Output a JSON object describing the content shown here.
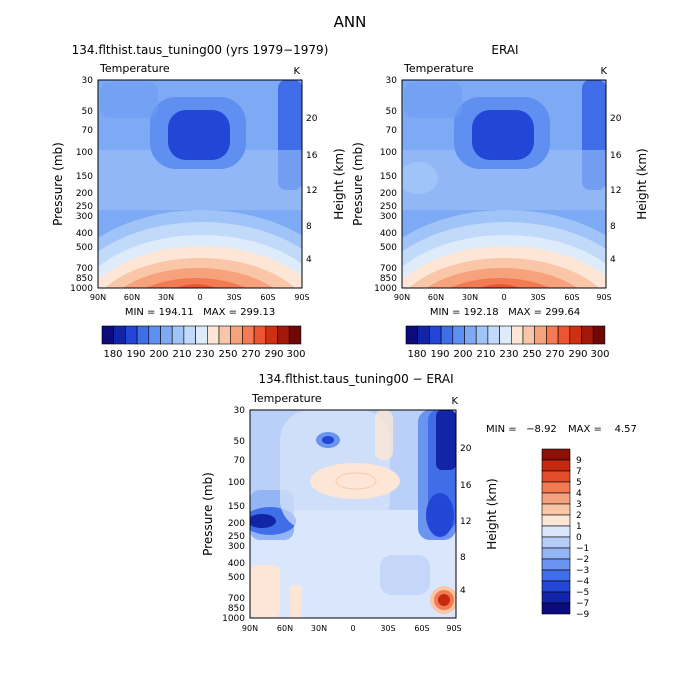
{
  "figure_title": "ANN",
  "colors": {
    "panel_scale": [
      "#0b0b7e",
      "#1224a8",
      "#2246d6",
      "#3f6ee8",
      "#5f8ff0",
      "#7ea9f4",
      "#a0c3f8",
      "#c2daf9",
      "#ddebfa",
      "#fde6d6",
      "#f9c7a8",
      "#f6a27c",
      "#f37a52",
      "#ec5530",
      "#cf3014",
      "#a3180b",
      "#700707"
    ],
    "diff_scale": [
      "#0b0b7e",
      "#1224a8",
      "#2246d6",
      "#3f6ee8",
      "#6a94f0",
      "#93b4f5",
      "#b6cdf8",
      "#d9e6fb",
      "#fde6d6",
      "#f9c7a8",
      "#f6a27c",
      "#f37a52",
      "#e24c28",
      "#c42a10",
      "#8c1008"
    ]
  },
  "chart_data": [
    {
      "type": "contour",
      "id": "model",
      "title": "134.flthist.taus_tuning00 (yrs 1979−1979)",
      "field": "Temperature",
      "units": "K",
      "ylabel": "Pressure (mb)",
      "ylabel_right": "Height (km)",
      "x_ticks": [
        "90N",
        "60N",
        "30N",
        "0",
        "30S",
        "60S",
        "90S"
      ],
      "y_ticks": [
        "30",
        "50",
        "70",
        "100",
        "150",
        "200",
        "250",
        "300",
        "400",
        "500",
        "700",
        "850",
        "1000"
      ],
      "y_ticks_right": [
        "20",
        "16",
        "12",
        "8",
        "4"
      ],
      "stats": "MIN = 194.11   MAX = 299.13",
      "colorbar_labels": [
        "180",
        "190",
        "200",
        "210",
        "230",
        "250",
        "270",
        "290",
        "300"
      ]
    },
    {
      "type": "contour",
      "id": "obs",
      "title": "ERAI",
      "field": "Temperature",
      "units": "K",
      "ylabel": "Pressure (mb)",
      "ylabel_right": "Height (km)",
      "x_ticks": [
        "90N",
        "60N",
        "30N",
        "0",
        "30S",
        "60S",
        "90S"
      ],
      "y_ticks": [
        "30",
        "50",
        "70",
        "100",
        "150",
        "200",
        "250",
        "300",
        "400",
        "500",
        "700",
        "850",
        "1000"
      ],
      "y_ticks_right": [
        "20",
        "16",
        "12",
        "8",
        "4"
      ],
      "stats": "MIN = 192.18   MAX = 299.64",
      "colorbar_labels": [
        "180",
        "190",
        "200",
        "210",
        "230",
        "250",
        "270",
        "290",
        "300"
      ]
    },
    {
      "type": "contour",
      "id": "diff",
      "title": "134.flthist.taus_tuning00 − ERAI",
      "field": "Temperature",
      "units": "K",
      "ylabel": "Pressure (mb)",
      "ylabel_right": "Height (km)",
      "x_ticks": [
        "90N",
        "60N",
        "30N",
        "0",
        "30S",
        "60S",
        "90S"
      ],
      "y_ticks": [
        "30",
        "50",
        "70",
        "100",
        "150",
        "200",
        "250",
        "300",
        "400",
        "500",
        "700",
        "850",
        "1000"
      ],
      "y_ticks_right": [
        "20",
        "16",
        "12",
        "8",
        "4"
      ],
      "stats_min": "MIN =   −8.92",
      "stats_max": "MAX =    4.57",
      "colorbar_labels": [
        "9",
        "7",
        "5",
        "4",
        "3",
        "2",
        "1",
        "0",
        "−1",
        "−2",
        "−3",
        "−4",
        "−5",
        "−7",
        "−9"
      ]
    }
  ]
}
